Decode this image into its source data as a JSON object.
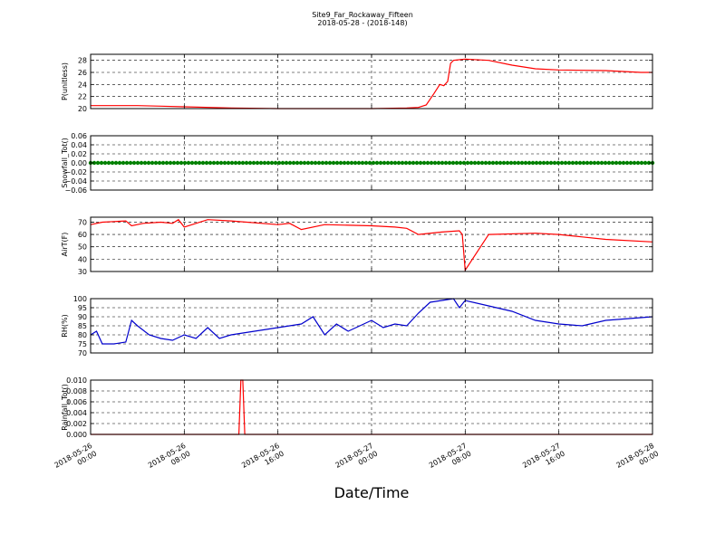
{
  "figure": {
    "title": "Site9_Far_Rockaway_Fifteen",
    "subtitle": "2018-05-28 - (2018-148)",
    "xlabel": "Date/Time"
  },
  "chart_data": {
    "type": "line",
    "x_range": [
      "2018-05-26 00:00",
      "2018-05-28 00:00"
    ],
    "x_ticks": [
      {
        "value": "2018-05-26 00:00",
        "date": "2018-05-26",
        "time": "00:00"
      },
      {
        "value": "2018-05-26 08:00",
        "date": "2018-05-26",
        "time": "08:00"
      },
      {
        "value": "2018-05-26 16:00",
        "date": "2018-05-26",
        "time": "16:00"
      },
      {
        "value": "2018-05-27 00:00",
        "date": "2018-05-27",
        "time": "00:00"
      },
      {
        "value": "2018-05-27 08:00",
        "date": "2018-05-27",
        "time": "08:00"
      },
      {
        "value": "2018-05-27 16:00",
        "date": "2018-05-27",
        "time": "16:00"
      },
      {
        "value": "2018-05-28 00:00",
        "date": "2018-05-28",
        "time": "00:00"
      }
    ],
    "grid": true,
    "panels": [
      {
        "ylabel": "P(unitless)",
        "ylim": [
          20,
          29
        ],
        "yticks": [
          20,
          22,
          24,
          26,
          28
        ],
        "ytick_labels": [
          "20",
          "22",
          "24",
          "26",
          "28"
        ],
        "color": "#ff0000",
        "series": {
          "x": [
            "2018-05-26 00:00",
            "2018-05-26 04:00",
            "2018-05-26 06:00",
            "2018-05-26 08:00",
            "2018-05-26 12:00",
            "2018-05-26 16:00",
            "2018-05-26 20:00",
            "2018-05-27 00:00",
            "2018-05-27 03:00",
            "2018-05-27 04:00",
            "2018-05-27 04:40",
            "2018-05-27 05:20",
            "2018-05-27 05:50",
            "2018-05-27 06:10",
            "2018-05-27 06:30",
            "2018-05-27 06:45",
            "2018-05-27 07:00",
            "2018-05-27 08:00",
            "2018-05-27 10:00",
            "2018-05-27 12:00",
            "2018-05-27 14:00",
            "2018-05-27 16:00",
            "2018-05-27 20:00",
            "2018-05-27 23:00",
            "2018-05-28 00:00"
          ],
          "y": [
            20.5,
            20.5,
            20.4,
            20.3,
            20.1,
            20.0,
            20.0,
            20.0,
            20.1,
            20.2,
            20.6,
            22.5,
            24.0,
            23.8,
            24.5,
            27.5,
            28.0,
            28.2,
            28.0,
            27.2,
            26.6,
            26.4,
            26.3,
            26.0,
            26.0
          ]
        }
      },
      {
        "ylabel": "Snowfall_Tot()",
        "ylim": [
          -0.06,
          0.06
        ],
        "yticks": [
          -0.06,
          -0.04,
          -0.02,
          0.0,
          0.02,
          0.04,
          0.06
        ],
        "ytick_labels": [
          "−0.06",
          "−0.04",
          "−0.02",
          "0.00",
          "0.02",
          "0.04",
          "0.06"
        ],
        "color": "#008000",
        "markers": true,
        "series": {
          "x": [
            "2018-05-26 00:00",
            "2018-05-28 00:00"
          ],
          "y": [
            0,
            0
          ]
        }
      },
      {
        "ylabel": "AirT(F)",
        "ylim": [
          30,
          74
        ],
        "yticks": [
          30,
          40,
          50,
          60,
          70
        ],
        "ytick_labels": [
          "30",
          "40",
          "50",
          "60",
          "70"
        ],
        "color": "#ff0000",
        "series": {
          "x": [
            "2018-05-26 00:00",
            "2018-05-26 01:00",
            "2018-05-26 03:00",
            "2018-05-26 03:30",
            "2018-05-26 04:30",
            "2018-05-26 06:00",
            "2018-05-26 07:00",
            "2018-05-26 07:30",
            "2018-05-26 08:00",
            "2018-05-26 09:00",
            "2018-05-26 10:00",
            "2018-05-26 12:00",
            "2018-05-26 16:00",
            "2018-05-26 17:00",
            "2018-05-26 18:00",
            "2018-05-26 20:00",
            "2018-05-27 00:00",
            "2018-05-27 02:00",
            "2018-05-27 03:00",
            "2018-05-27 04:00",
            "2018-05-27 06:00",
            "2018-05-27 07:30",
            "2018-05-27 07:45",
            "2018-05-27 08:00",
            "2018-05-27 10:00",
            "2018-05-27 14:00",
            "2018-05-27 16:00",
            "2018-05-27 18:00",
            "2018-05-27 20:00",
            "2018-05-28 00:00"
          ],
          "y": [
            68,
            70,
            71,
            67,
            69,
            70,
            69,
            72,
            66,
            69,
            72,
            71,
            68,
            69,
            64,
            68,
            67,
            66,
            65,
            60,
            62,
            63,
            60,
            31,
            60,
            61,
            60,
            58,
            56,
            54
          ]
        }
      },
      {
        "ylabel": "RH(%)",
        "ylim": [
          70,
          100
        ],
        "yticks": [
          70,
          75,
          80,
          85,
          90,
          95,
          100
        ],
        "ytick_labels": [
          "70",
          "75",
          "80",
          "85",
          "90",
          "95",
          "100"
        ],
        "color": "#0000cc",
        "series": {
          "x": [
            "2018-05-26 00:00",
            "2018-05-26 00:30",
            "2018-05-26 01:00",
            "2018-05-26 02:00",
            "2018-05-26 03:00",
            "2018-05-26 03:30",
            "2018-05-26 04:00",
            "2018-05-26 05:00",
            "2018-05-26 06:00",
            "2018-05-26 07:00",
            "2018-05-26 08:00",
            "2018-05-26 09:00",
            "2018-05-26 10:00",
            "2018-05-26 11:00",
            "2018-05-26 12:00",
            "2018-05-26 14:00",
            "2018-05-26 16:00",
            "2018-05-26 18:00",
            "2018-05-26 19:00",
            "2018-05-26 20:00",
            "2018-05-26 21:00",
            "2018-05-26 22:00",
            "2018-05-27 00:00",
            "2018-05-27 01:00",
            "2018-05-27 02:00",
            "2018-05-27 03:00",
            "2018-05-27 04:00",
            "2018-05-27 05:00",
            "2018-05-27 06:00",
            "2018-05-27 07:00",
            "2018-05-27 07:30",
            "2018-05-27 08:00",
            "2018-05-27 10:00",
            "2018-05-27 12:00",
            "2018-05-27 14:00",
            "2018-05-27 16:00",
            "2018-05-27 18:00",
            "2018-05-27 20:00",
            "2018-05-27 22:00",
            "2018-05-28 00:00"
          ],
          "y": [
            80,
            82,
            75,
            75,
            76,
            88,
            85,
            80,
            78,
            77,
            80,
            78,
            84,
            78,
            80,
            82,
            84,
            86,
            90,
            80,
            86,
            82,
            88,
            84,
            86,
            85,
            92,
            98,
            99,
            100,
            95,
            99,
            96,
            93,
            88,
            86,
            85,
            88,
            89,
            90
          ]
        }
      },
      {
        "ylabel": "Rainfall_Tot()",
        "ylim": [
          0,
          0.01
        ],
        "yticks": [
          0,
          0.002,
          0.004,
          0.006,
          0.008,
          0.01
        ],
        "ytick_labels": [
          "0.000",
          "0.002",
          "0.004",
          "0.006",
          "0.008",
          "0.010"
        ],
        "color": "#ff0000",
        "series": {
          "x": [
            "2018-05-26 00:00",
            "2018-05-26 12:40",
            "2018-05-26 12:50",
            "2018-05-26 13:00",
            "2018-05-26 13:10",
            "2018-05-28 00:00"
          ],
          "y": [
            0,
            0,
            0.01,
            0.01,
            0,
            0
          ]
        }
      }
    ]
  }
}
